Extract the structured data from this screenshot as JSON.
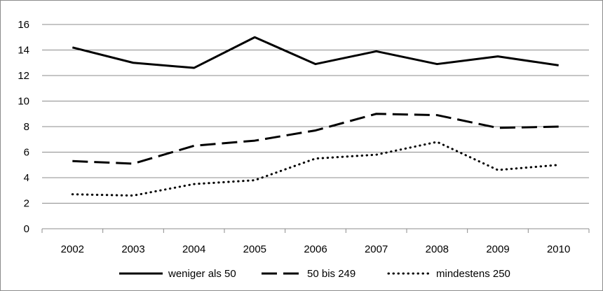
{
  "chart_data": {
    "type": "line",
    "title": "",
    "xlabel": "",
    "ylabel": "",
    "ylim": [
      0,
      16
    ],
    "y_ticks": [
      "0",
      "2",
      "4",
      "6",
      "8",
      "10",
      "12",
      "14",
      "16"
    ],
    "categories": [
      "2002",
      "2003",
      "2004",
      "2005",
      "2006",
      "2007",
      "2008",
      "2009",
      "2010"
    ],
    "grid": "horizontal",
    "legend_position": "bottom",
    "series": [
      {
        "name": "weniger als 50",
        "style": "solid",
        "color": "#000000",
        "values": [
          14.2,
          13.0,
          12.6,
          15.0,
          12.9,
          13.9,
          12.9,
          13.5,
          12.8
        ]
      },
      {
        "name": "50 bis 249",
        "style": "dashed",
        "color": "#000000",
        "values": [
          5.3,
          5.1,
          6.5,
          6.9,
          7.7,
          9.0,
          8.9,
          7.9,
          8.0
        ]
      },
      {
        "name": "mindestens 250",
        "style": "dotted",
        "color": "#000000",
        "values": [
          2.7,
          2.6,
          3.5,
          3.8,
          5.5,
          5.8,
          6.8,
          4.6,
          5.0
        ]
      }
    ]
  }
}
